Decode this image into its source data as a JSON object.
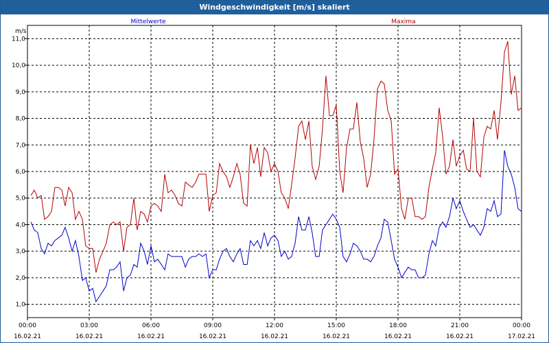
{
  "chart_data": {
    "type": "line",
    "title": "Windgeschwindigkeit [m/s] skaliert",
    "ylabel": "m/s",
    "ylim": [
      0.5,
      11.5
    ],
    "y_ticks": [
      "1,0",
      "2,0",
      "3,0",
      "4,0",
      "5,0",
      "6,0",
      "7,0",
      "8,0",
      "9,0",
      "10,0",
      "11,0"
    ],
    "y_tick_values": [
      1,
      2,
      3,
      4,
      5,
      6,
      7,
      8,
      9,
      10,
      11
    ],
    "x_range_hours": [
      0,
      24
    ],
    "x_ticks": [
      {
        "time": "00:00",
        "date": "16.02.21",
        "hour": 0
      },
      {
        "time": "03:00",
        "date": "16.02.21",
        "hour": 3
      },
      {
        "time": "06:00",
        "date": "16.02.21",
        "hour": 6
      },
      {
        "time": "09:00",
        "date": "16.02.21",
        "hour": 9
      },
      {
        "time": "12:00",
        "date": "16.02.21",
        "hour": 12
      },
      {
        "time": "15:00",
        "date": "16.02.21",
        "hour": 15
      },
      {
        "time": "18:00",
        "date": "16.02.21",
        "hour": 18
      },
      {
        "time": "21:00",
        "date": "16.02.21",
        "hour": 21
      },
      {
        "time": "00:00",
        "date": "17.02.21",
        "hour": 24
      }
    ],
    "grid": true,
    "series": [
      {
        "name": "Mittelwerte",
        "color": "#0000cc",
        "points": [
          [
            0.17,
            4.1
          ],
          [
            0.33,
            3.8
          ],
          [
            0.5,
            3.7
          ],
          [
            0.67,
            3.1
          ],
          [
            0.83,
            2.9
          ],
          [
            1.0,
            3.3
          ],
          [
            1.17,
            3.2
          ],
          [
            1.33,
            3.4
          ],
          [
            1.5,
            3.5
          ],
          [
            1.67,
            3.6
          ],
          [
            1.83,
            3.9
          ],
          [
            2.0,
            3.5
          ],
          [
            2.17,
            3.0
          ],
          [
            2.33,
            3.4
          ],
          [
            2.5,
            2.8
          ],
          [
            2.67,
            1.9
          ],
          [
            2.83,
            2.0
          ],
          [
            3.0,
            1.5
          ],
          [
            3.17,
            1.6
          ],
          [
            3.33,
            1.1
          ],
          [
            3.5,
            1.3
          ],
          [
            3.67,
            1.5
          ],
          [
            3.83,
            1.7
          ],
          [
            4.0,
            2.3
          ],
          [
            4.17,
            2.3
          ],
          [
            4.33,
            2.4
          ],
          [
            4.5,
            2.6
          ],
          [
            4.67,
            1.5
          ],
          [
            4.83,
            2.0
          ],
          [
            5.0,
            2.1
          ],
          [
            5.17,
            2.5
          ],
          [
            5.33,
            2.4
          ],
          [
            5.5,
            3.3
          ],
          [
            5.67,
            3.0
          ],
          [
            5.83,
            2.5
          ],
          [
            6.0,
            3.2
          ],
          [
            6.17,
            2.6
          ],
          [
            6.33,
            2.7
          ],
          [
            6.5,
            2.5
          ],
          [
            6.67,
            2.3
          ],
          [
            6.83,
            2.9
          ],
          [
            7.0,
            2.8
          ],
          [
            7.17,
            2.8
          ],
          [
            7.33,
            2.8
          ],
          [
            7.5,
            2.8
          ],
          [
            7.67,
            2.4
          ],
          [
            7.83,
            2.7
          ],
          [
            8.0,
            2.8
          ],
          [
            8.17,
            2.8
          ],
          [
            8.33,
            2.9
          ],
          [
            8.5,
            2.8
          ],
          [
            8.67,
            2.9
          ],
          [
            8.83,
            2.0
          ],
          [
            9.0,
            2.3
          ],
          [
            9.17,
            2.3
          ],
          [
            9.33,
            2.7
          ],
          [
            9.5,
            3.0
          ],
          [
            9.67,
            3.1
          ],
          [
            9.83,
            2.8
          ],
          [
            10.0,
            2.6
          ],
          [
            10.17,
            2.9
          ],
          [
            10.33,
            3.1
          ],
          [
            10.5,
            2.5
          ],
          [
            10.67,
            2.5
          ],
          [
            10.83,
            3.4
          ],
          [
            11.0,
            3.2
          ],
          [
            11.17,
            3.4
          ],
          [
            11.33,
            3.1
          ],
          [
            11.5,
            3.7
          ],
          [
            11.67,
            3.2
          ],
          [
            11.83,
            3.5
          ],
          [
            12.0,
            3.6
          ],
          [
            12.17,
            3.4
          ],
          [
            12.33,
            2.8
          ],
          [
            12.5,
            3.0
          ],
          [
            12.67,
            2.7
          ],
          [
            12.83,
            2.8
          ],
          [
            13.0,
            3.3
          ],
          [
            13.17,
            4.3
          ],
          [
            13.33,
            3.8
          ],
          [
            13.5,
            3.8
          ],
          [
            13.67,
            4.3
          ],
          [
            13.83,
            3.7
          ],
          [
            14.0,
            2.8
          ],
          [
            14.17,
            2.8
          ],
          [
            14.33,
            3.8
          ],
          [
            14.5,
            4.0
          ],
          [
            14.67,
            4.2
          ],
          [
            14.83,
            4.4
          ],
          [
            15.0,
            4.2
          ],
          [
            15.17,
            3.9
          ],
          [
            15.33,
            2.8
          ],
          [
            15.5,
            2.6
          ],
          [
            15.67,
            2.9
          ],
          [
            15.83,
            3.3
          ],
          [
            16.0,
            3.2
          ],
          [
            16.17,
            3.0
          ],
          [
            16.33,
            2.7
          ],
          [
            16.5,
            2.7
          ],
          [
            16.67,
            2.6
          ],
          [
            16.83,
            2.8
          ],
          [
            17.0,
            3.2
          ],
          [
            17.17,
            3.5
          ],
          [
            17.33,
            4.2
          ],
          [
            17.5,
            4.1
          ],
          [
            17.67,
            3.4
          ],
          [
            17.83,
            2.7
          ],
          [
            18.0,
            2.4
          ],
          [
            18.17,
            2.0
          ],
          [
            18.33,
            2.2
          ],
          [
            18.5,
            2.4
          ],
          [
            18.67,
            2.3
          ],
          [
            18.83,
            2.3
          ],
          [
            19.0,
            2.0
          ],
          [
            19.17,
            2.0
          ],
          [
            19.33,
            2.1
          ],
          [
            19.5,
            2.9
          ],
          [
            19.67,
            3.4
          ],
          [
            19.83,
            3.2
          ],
          [
            20.0,
            3.9
          ],
          [
            20.17,
            4.1
          ],
          [
            20.33,
            3.9
          ],
          [
            20.5,
            4.3
          ],
          [
            20.67,
            5.0
          ],
          [
            20.83,
            4.6
          ],
          [
            21.0,
            4.9
          ],
          [
            21.17,
            4.5
          ],
          [
            21.33,
            4.2
          ],
          [
            21.5,
            3.9
          ],
          [
            21.67,
            4.0
          ],
          [
            21.83,
            3.8
          ],
          [
            22.0,
            3.6
          ],
          [
            22.17,
            3.9
          ],
          [
            22.33,
            4.6
          ],
          [
            22.5,
            4.5
          ],
          [
            22.67,
            4.9
          ],
          [
            22.83,
            4.3
          ],
          [
            23.0,
            4.4
          ],
          [
            23.17,
            6.8
          ],
          [
            23.33,
            6.2
          ],
          [
            23.5,
            5.9
          ],
          [
            23.67,
            5.4
          ],
          [
            23.83,
            4.6
          ],
          [
            24.0,
            4.5
          ]
        ]
      },
      {
        "name": "Maxima",
        "color": "#b30000",
        "points": [
          [
            0.17,
            5.1
          ],
          [
            0.33,
            5.3
          ],
          [
            0.5,
            5.0
          ],
          [
            0.67,
            5.1
          ],
          [
            0.83,
            4.2
          ],
          [
            1.0,
            4.3
          ],
          [
            1.17,
            4.5
          ],
          [
            1.33,
            5.4
          ],
          [
            1.5,
            5.4
          ],
          [
            1.67,
            5.3
          ],
          [
            1.83,
            4.7
          ],
          [
            2.0,
            5.4
          ],
          [
            2.17,
            5.2
          ],
          [
            2.33,
            4.2
          ],
          [
            2.5,
            4.5
          ],
          [
            2.67,
            4.2
          ],
          [
            2.83,
            3.2
          ],
          [
            3.0,
            3.1
          ],
          [
            3.17,
            3.1
          ],
          [
            3.33,
            2.2
          ],
          [
            3.5,
            2.7
          ],
          [
            3.67,
            3.0
          ],
          [
            3.83,
            3.3
          ],
          [
            4.0,
            4.0
          ],
          [
            4.17,
            4.1
          ],
          [
            4.33,
            4.0
          ],
          [
            4.5,
            4.1
          ],
          [
            4.67,
            3.0
          ],
          [
            4.83,
            3.9
          ],
          [
            5.0,
            4.0
          ],
          [
            5.17,
            5.0
          ],
          [
            5.33,
            3.8
          ],
          [
            5.5,
            4.5
          ],
          [
            5.67,
            4.4
          ],
          [
            5.83,
            4.1
          ],
          [
            6.0,
            4.7
          ],
          [
            6.17,
            4.8
          ],
          [
            6.33,
            4.7
          ],
          [
            6.5,
            4.5
          ],
          [
            6.67,
            5.9
          ],
          [
            6.83,
            5.2
          ],
          [
            7.0,
            5.3
          ],
          [
            7.17,
            5.1
          ],
          [
            7.33,
            4.8
          ],
          [
            7.5,
            4.7
          ],
          [
            7.67,
            5.6
          ],
          [
            7.83,
            5.5
          ],
          [
            8.0,
            5.4
          ],
          [
            8.17,
            5.6
          ],
          [
            8.33,
            5.9
          ],
          [
            8.5,
            5.9
          ],
          [
            8.67,
            5.9
          ],
          [
            8.83,
            4.5
          ],
          [
            9.0,
            5.1
          ],
          [
            9.17,
            5.2
          ],
          [
            9.33,
            6.3
          ],
          [
            9.5,
            6.0
          ],
          [
            9.67,
            5.8
          ],
          [
            9.83,
            5.4
          ],
          [
            10.0,
            5.8
          ],
          [
            10.17,
            6.3
          ],
          [
            10.33,
            5.9
          ],
          [
            10.5,
            4.8
          ],
          [
            10.67,
            4.7
          ],
          [
            10.83,
            7.0
          ],
          [
            11.0,
            6.3
          ],
          [
            11.17,
            6.9
          ],
          [
            11.33,
            5.8
          ],
          [
            11.5,
            6.9
          ],
          [
            11.67,
            6.7
          ],
          [
            11.83,
            6.0
          ],
          [
            12.0,
            6.3
          ],
          [
            12.17,
            6.0
          ],
          [
            12.33,
            5.2
          ],
          [
            12.5,
            5.0
          ],
          [
            12.67,
            4.6
          ],
          [
            12.83,
            5.5
          ],
          [
            13.0,
            6.5
          ],
          [
            13.17,
            7.7
          ],
          [
            13.33,
            7.9
          ],
          [
            13.5,
            7.2
          ],
          [
            13.67,
            7.9
          ],
          [
            13.83,
            6.2
          ],
          [
            14.0,
            5.7
          ],
          [
            14.17,
            6.2
          ],
          [
            14.33,
            7.6
          ],
          [
            14.5,
            9.6
          ],
          [
            14.67,
            8.1
          ],
          [
            14.83,
            8.1
          ],
          [
            15.0,
            8.5
          ],
          [
            15.17,
            6.0
          ],
          [
            15.33,
            5.2
          ],
          [
            15.5,
            6.9
          ],
          [
            15.67,
            7.6
          ],
          [
            15.83,
            7.6
          ],
          [
            16.0,
            8.6
          ],
          [
            16.17,
            7.1
          ],
          [
            16.33,
            6.5
          ],
          [
            16.5,
            5.4
          ],
          [
            16.67,
            5.9
          ],
          [
            16.83,
            7.2
          ],
          [
            17.0,
            9.1
          ],
          [
            17.17,
            9.4
          ],
          [
            17.33,
            9.3
          ],
          [
            17.5,
            8.3
          ],
          [
            17.67,
            7.9
          ],
          [
            17.83,
            5.9
          ],
          [
            18.0,
            6.1
          ],
          [
            18.17,
            4.6
          ],
          [
            18.33,
            4.2
          ],
          [
            18.5,
            5.0
          ],
          [
            18.67,
            5.0
          ],
          [
            18.83,
            4.3
          ],
          [
            19.0,
            4.3
          ],
          [
            19.17,
            4.2
          ],
          [
            19.33,
            4.3
          ],
          [
            19.5,
            5.4
          ],
          [
            19.67,
            6.1
          ],
          [
            19.83,
            6.7
          ],
          [
            20.0,
            8.4
          ],
          [
            20.17,
            7.3
          ],
          [
            20.33,
            5.9
          ],
          [
            20.5,
            6.2
          ],
          [
            20.67,
            7.2
          ],
          [
            20.83,
            6.2
          ],
          [
            21.0,
            6.6
          ],
          [
            21.17,
            6.8
          ],
          [
            21.33,
            6.1
          ],
          [
            21.5,
            6.0
          ],
          [
            21.67,
            8.0
          ],
          [
            21.83,
            6.0
          ],
          [
            22.0,
            5.8
          ],
          [
            22.17,
            7.3
          ],
          [
            22.33,
            7.7
          ],
          [
            22.5,
            7.6
          ],
          [
            22.67,
            8.3
          ],
          [
            22.83,
            7.2
          ],
          [
            23.0,
            8.6
          ],
          [
            23.17,
            10.5
          ],
          [
            23.33,
            10.9
          ],
          [
            23.5,
            8.9
          ],
          [
            23.67,
            9.6
          ],
          [
            23.83,
            8.3
          ],
          [
            24.0,
            8.4
          ]
        ]
      }
    ]
  }
}
